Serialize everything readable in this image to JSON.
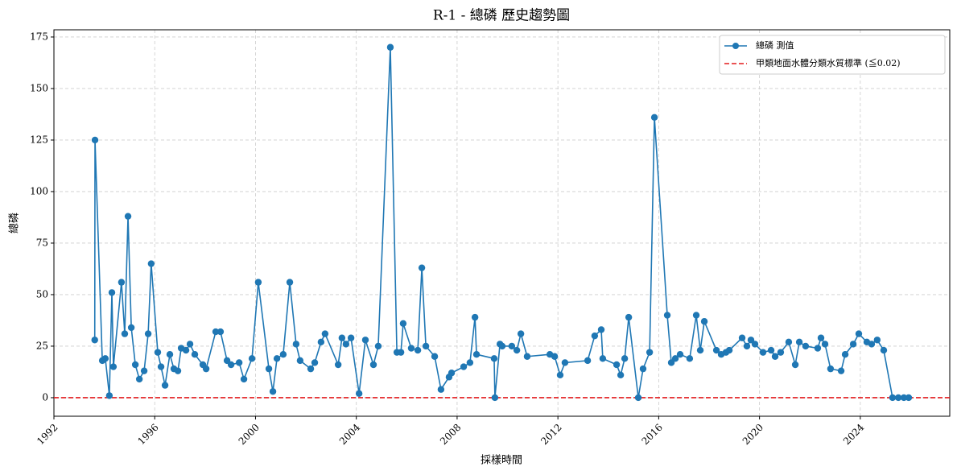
{
  "chart_data": {
    "type": "line",
    "title": "R-1 - 總磷 歷史趨勢圖",
    "xlabel": "採樣時間",
    "ylabel": "總磷",
    "x": [
      1993.62,
      1993.63,
      1993.92,
      1994.04,
      1994.2,
      1994.3,
      1994.36,
      1994.68,
      1994.81,
      1994.94,
      1995.07,
      1995.23,
      1995.39,
      1995.58,
      1995.74,
      1995.86,
      1996.12,
      1996.25,
      1996.41,
      1996.6,
      1996.76,
      1996.92,
      1997.05,
      1997.24,
      1997.4,
      1997.59,
      1997.91,
      1998.04,
      1998.42,
      1998.61,
      1998.87,
      1999.03,
      1999.35,
      1999.54,
      1999.86,
      2000.11,
      2000.53,
      2000.69,
      2000.85,
      2001.1,
      2001.36,
      2001.61,
      2001.77,
      2002.19,
      2002.35,
      2002.6,
      2002.76,
      2003.28,
      2003.43,
      2003.59,
      2003.79,
      2004.11,
      2004.36,
      2004.68,
      2004.87,
      2005.35,
      2005.61,
      2005.77,
      2005.86,
      2006.18,
      2006.44,
      2006.6,
      2006.76,
      2007.11,
      2007.36,
      2007.68,
      2007.78,
      2008.26,
      2008.51,
      2008.71,
      2008.77,
      2009.47,
      2009.5,
      2009.7,
      2009.79,
      2010.17,
      2010.37,
      2010.53,
      2010.78,
      2011.68,
      2011.87,
      2012.09,
      2012.28,
      2013.18,
      2013.46,
      2013.72,
      2013.78,
      2014.33,
      2014.49,
      2014.65,
      2014.81,
      2015.19,
      2015.38,
      2015.64,
      2015.83,
      2016.34,
      2016.5,
      2016.66,
      2016.85,
      2017.23,
      2017.49,
      2017.65,
      2017.81,
      2018.29,
      2018.48,
      2018.67,
      2018.8,
      2019.31,
      2019.5,
      2019.66,
      2019.82,
      2020.14,
      2020.46,
      2020.62,
      2020.84,
      2021.16,
      2021.42,
      2021.58,
      2021.83,
      2022.31,
      2022.44,
      2022.6,
      2022.82,
      2023.24,
      2023.4,
      2023.72,
      2023.94,
      2024.26,
      2024.45,
      2024.67,
      2024.93,
      2025.28,
      2025.51,
      2025.73,
      2025.92
    ],
    "series": [
      {
        "name": "總磷 測值",
        "color": "#1f77b4",
        "values": [
          28,
          125,
          18,
          19,
          1,
          51,
          15,
          56,
          31,
          88,
          34,
          16,
          9,
          13,
          31,
          65,
          22,
          15,
          6,
          21,
          14,
          13,
          24,
          23,
          26,
          21,
          16,
          14,
          32,
          32,
          18,
          16,
          17,
          9,
          19,
          56,
          14,
          3,
          19,
          21,
          56,
          26,
          18,
          14,
          17,
          27,
          31,
          16,
          29,
          26,
          29,
          2,
          28,
          16,
          25,
          170,
          22,
          22,
          36,
          24,
          23,
          63,
          25,
          20,
          4,
          10,
          12,
          15,
          17,
          39,
          21,
          19,
          0,
          26,
          25,
          25,
          23,
          31,
          20,
          21,
          20,
          11,
          17,
          18,
          30,
          33,
          19,
          16,
          11,
          19,
          39,
          0,
          14,
          22,
          136,
          40,
          17,
          19,
          21,
          19,
          40,
          23,
          37,
          23,
          21,
          22,
          23,
          29,
          25,
          28,
          26,
          22,
          23,
          20,
          22,
          27,
          16,
          27,
          25,
          24,
          29,
          26,
          14,
          13,
          21,
          26,
          31,
          27,
          26,
          28,
          23,
          0,
          0,
          0,
          0
        ]
      }
    ],
    "reference_line": {
      "name": "甲類地面水體分類水質標準 (≦0.02)",
      "value": 0.02,
      "color": "#e31a1c"
    },
    "xlim": [
      1992,
      2027.55
    ],
    "xticks": [
      1992,
      1996,
      2000,
      2004,
      2008,
      2012,
      2016,
      2020,
      2024
    ],
    "ylim": [
      -9,
      178.5
    ],
    "yticks": [
      0,
      25,
      50,
      75,
      100,
      125,
      150,
      175
    ],
    "grid": true,
    "legend": "upper right"
  }
}
